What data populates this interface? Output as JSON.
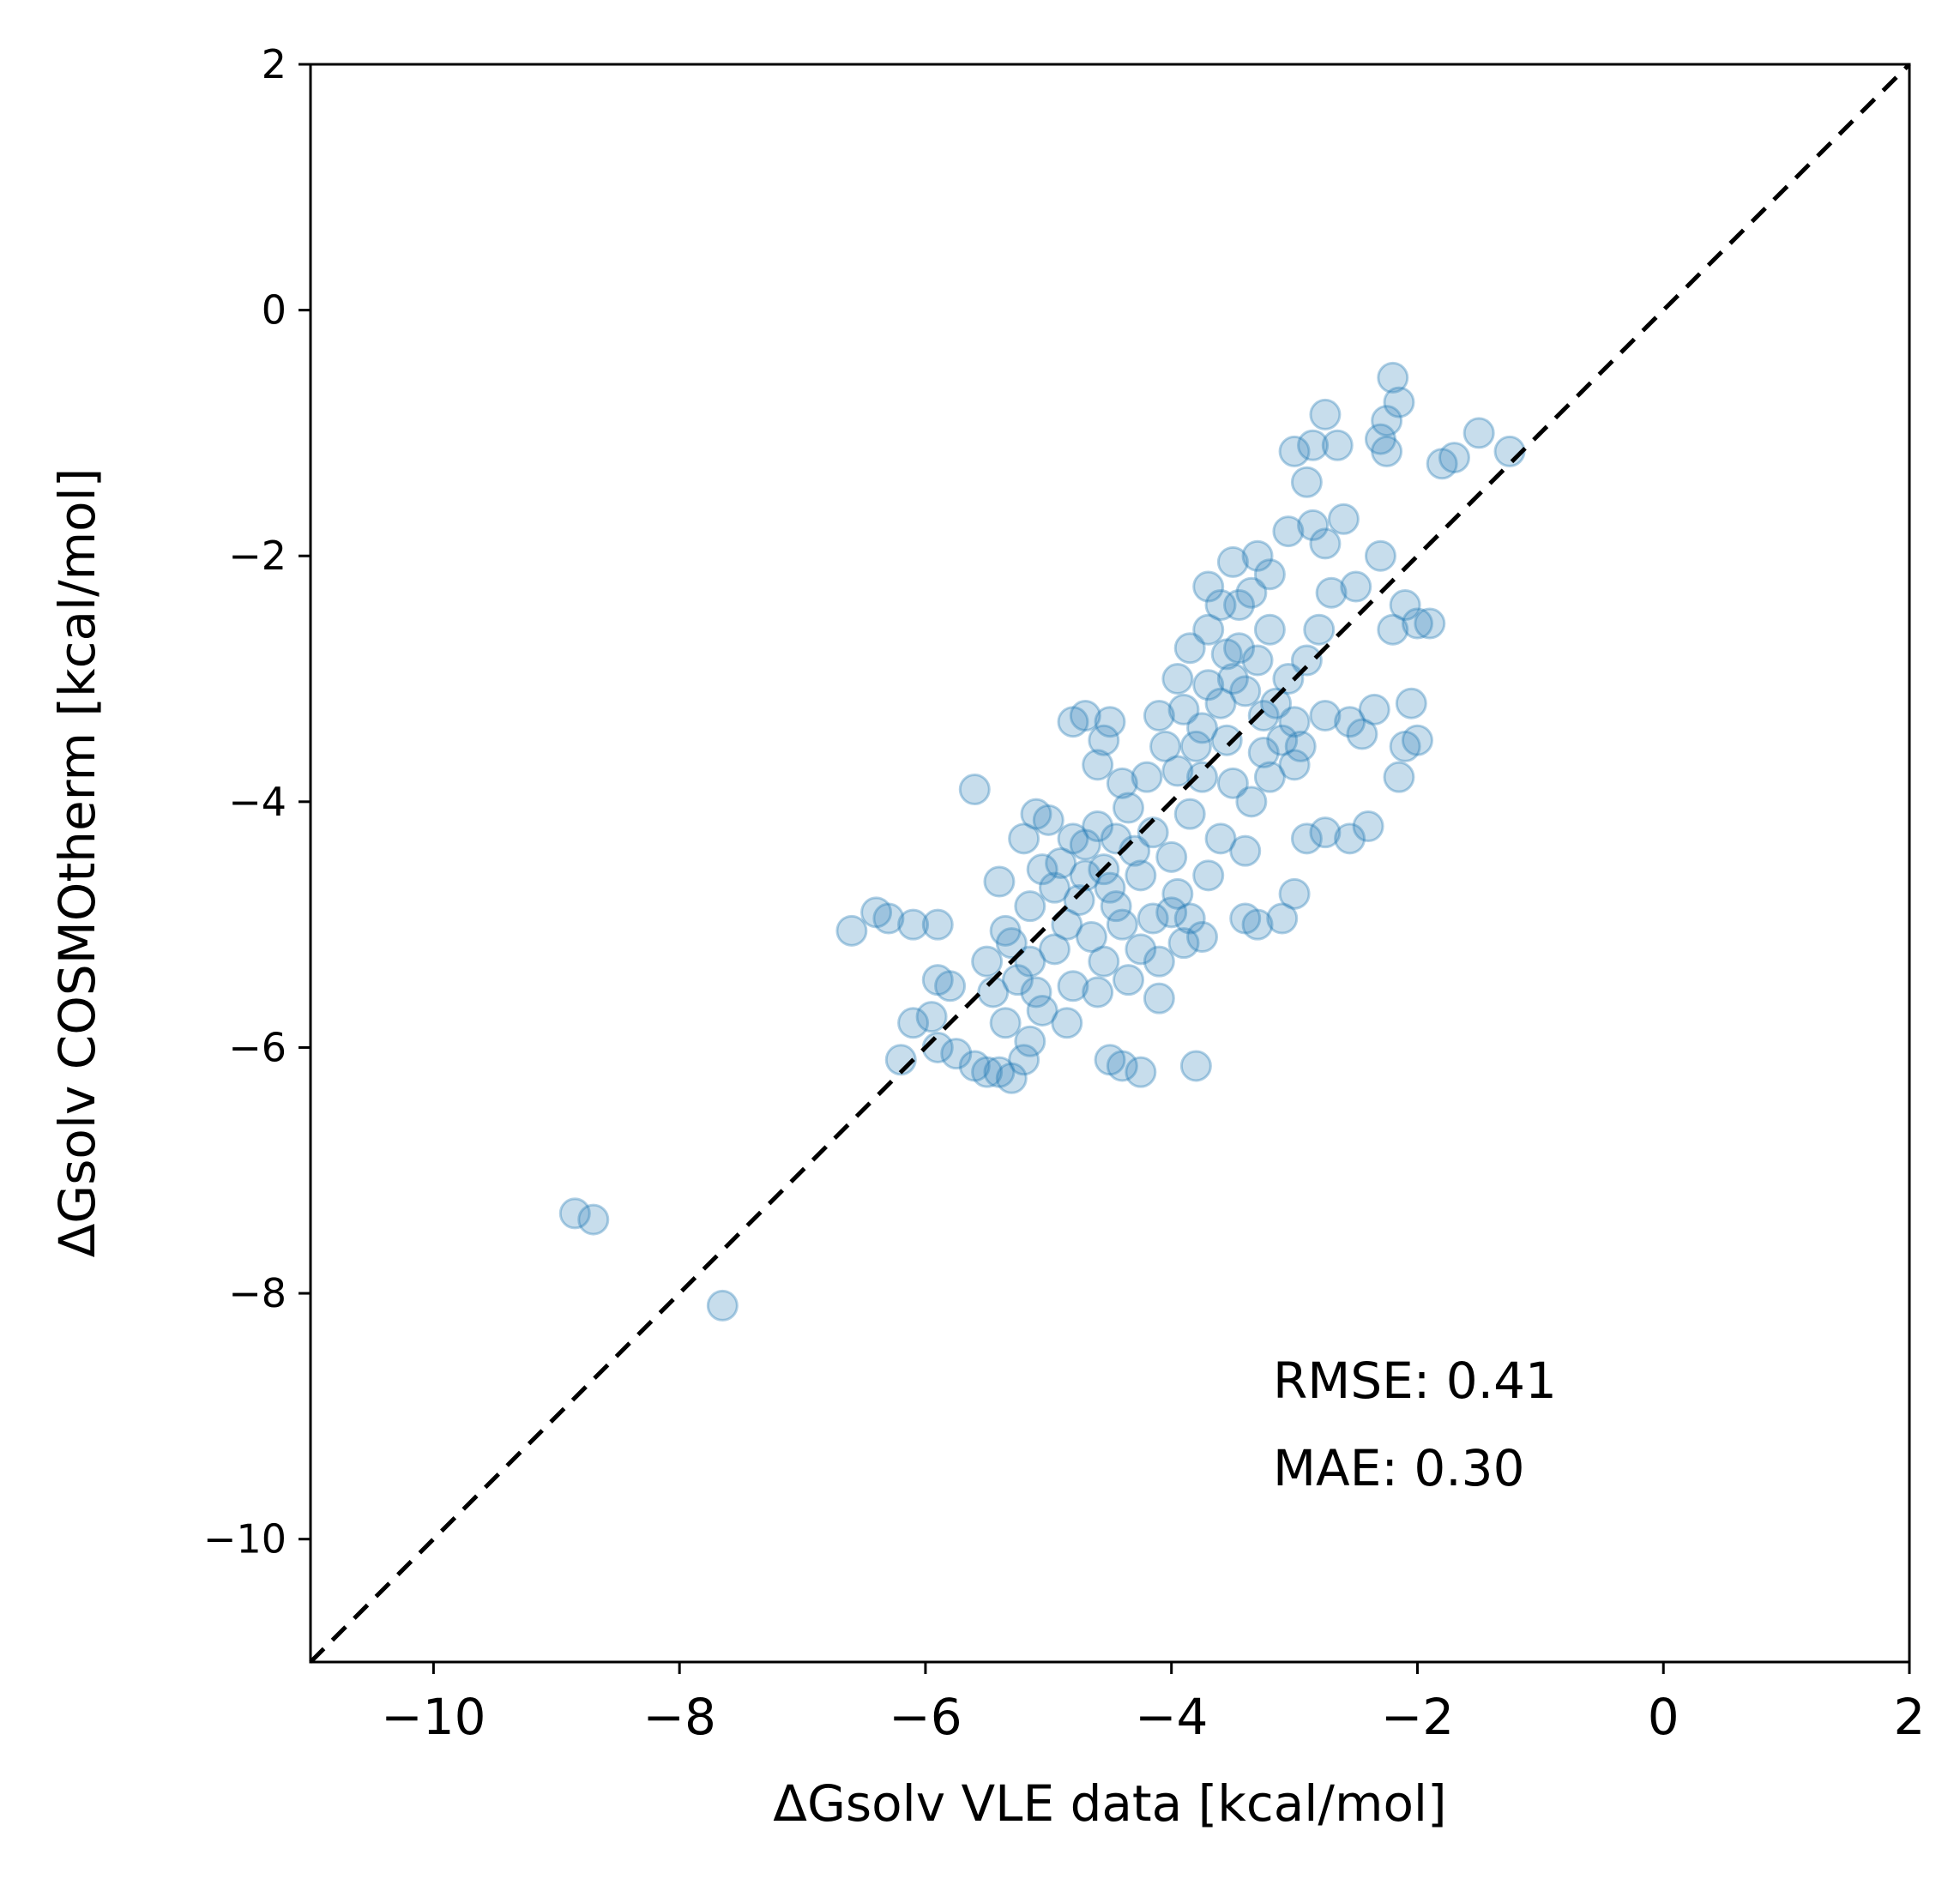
{
  "chart_data": {
    "type": "scatter",
    "xlabel": "ΔGsolv VLE data [kcal/mol]",
    "ylabel": "ΔGsolv COSMOtherm [kcal/mol]",
    "xlim": [
      -11,
      2
    ],
    "ylim": [
      -11,
      2
    ],
    "x_ticks": [
      -10,
      -8,
      -6,
      -4,
      -2,
      0,
      2
    ],
    "y_ticks": [
      -10,
      -8,
      -6,
      -4,
      -2,
      0,
      2
    ],
    "x_tick_labels": [
      "−10",
      "−8",
      "−6",
      "−4",
      "−2",
      "0",
      "2"
    ],
    "y_tick_labels": [
      "−10",
      "−8",
      "−6",
      "−4",
      "−2",
      "0",
      "2"
    ],
    "grid": false,
    "marker_color": "#1f77b4",
    "marker_alpha": 0.25,
    "reference_line": {
      "style": "dashed",
      "color": "#000000",
      "from": [
        -11,
        -11
      ],
      "to": [
        2,
        2
      ]
    },
    "annotations": [
      "RMSE: 0.41",
      "MAE: 0.30"
    ],
    "series": [
      {
        "points": [
          [
            -8.85,
            -7.35
          ],
          [
            -8.7,
            -7.4
          ],
          [
            -7.65,
            -8.1
          ],
          [
            -6.6,
            -5.05
          ],
          [
            -6.4,
            -4.9
          ],
          [
            -6.3,
            -4.95
          ],
          [
            -6.1,
            -5.0
          ],
          [
            -5.9,
            -5.0
          ],
          [
            -6.2,
            -6.1
          ],
          [
            -6.1,
            -5.8
          ],
          [
            -5.95,
            -5.75
          ],
          [
            -5.9,
            -5.45
          ],
          [
            -5.8,
            -5.5
          ],
          [
            -5.9,
            -6.0
          ],
          [
            -5.75,
            -6.05
          ],
          [
            -5.6,
            -6.15
          ],
          [
            -5.5,
            -6.2
          ],
          [
            -5.4,
            -6.2
          ],
          [
            -5.3,
            -6.25
          ],
          [
            -5.2,
            -6.1
          ],
          [
            -5.15,
            -5.95
          ],
          [
            -5.6,
            -3.9
          ],
          [
            -5.4,
            -4.65
          ],
          [
            -5.1,
            -4.1
          ],
          [
            -4.8,
            -3.35
          ],
          [
            -4.7,
            -3.3
          ],
          [
            -4.5,
            -3.35
          ],
          [
            -4.55,
            -3.5
          ],
          [
            -4.6,
            -3.7
          ],
          [
            -4.4,
            -3.85
          ],
          [
            -4.5,
            -6.1
          ],
          [
            -4.4,
            -6.15
          ],
          [
            -4.25,
            -6.2
          ],
          [
            -3.8,
            -6.15
          ],
          [
            -3.4,
            -4.95
          ],
          [
            -3.3,
            -5.0
          ],
          [
            -3.1,
            -4.95
          ],
          [
            -3.0,
            -4.75
          ],
          [
            -3.75,
            -5.1
          ],
          [
            -4.0,
            -4.9
          ],
          [
            -4.1,
            -5.6
          ],
          [
            -3.7,
            -2.25
          ],
          [
            -3.5,
            -2.05
          ],
          [
            -3.3,
            -2.0
          ],
          [
            -3.05,
            -1.8
          ],
          [
            -2.85,
            -1.75
          ],
          [
            -2.6,
            -1.7
          ],
          [
            -2.75,
            -1.9
          ],
          [
            -2.3,
            -2.0
          ],
          [
            -2.5,
            -2.25
          ],
          [
            -2.7,
            -2.3
          ],
          [
            -3.0,
            -1.15
          ],
          [
            -2.85,
            -1.1
          ],
          [
            -2.9,
            -1.4
          ],
          [
            -2.65,
            -1.1
          ],
          [
            -2.75,
            -0.85
          ],
          [
            -2.3,
            -1.05
          ],
          [
            -2.25,
            -1.15
          ],
          [
            -2.2,
            -0.55
          ],
          [
            -2.15,
            -0.75
          ],
          [
            -2.25,
            -0.9
          ],
          [
            -1.8,
            -1.25
          ],
          [
            -1.5,
            -1.0
          ],
          [
            -1.25,
            -1.15
          ],
          [
            -1.7,
            -1.2
          ],
          [
            -2.1,
            -2.4
          ],
          [
            -2.2,
            -2.6
          ],
          [
            -2.0,
            -2.55
          ],
          [
            -1.9,
            -2.55
          ],
          [
            -2.05,
            -3.2
          ],
          [
            -2.1,
            -3.55
          ],
          [
            -2.0,
            -3.5
          ],
          [
            -2.15,
            -3.8
          ],
          [
            -2.35,
            -3.25
          ],
          [
            -2.55,
            -3.35
          ],
          [
            -2.45,
            -3.45
          ],
          [
            -2.75,
            -3.3
          ],
          [
            -2.4,
            -4.2
          ],
          [
            -2.55,
            -4.3
          ],
          [
            -2.75,
            -4.25
          ],
          [
            -2.9,
            -4.3
          ],
          [
            -5.2,
            -4.3
          ],
          [
            -5.0,
            -4.15
          ],
          [
            -4.9,
            -4.5
          ],
          [
            -4.95,
            -5.2
          ],
          [
            -5.15,
            -5.3
          ],
          [
            -5.3,
            -5.15
          ],
          [
            -5.1,
            -5.55
          ],
          [
            -4.8,
            -5.5
          ],
          [
            -4.6,
            -5.55
          ],
          [
            -4.35,
            -5.45
          ],
          [
            -4.6,
            -4.2
          ],
          [
            -4.35,
            -4.05
          ],
          [
            -4.7,
            -4.35
          ],
          [
            -4.5,
            -4.7
          ],
          [
            -4.4,
            -5.0
          ],
          [
            -4.2,
            -3.8
          ],
          [
            -4.05,
            -3.55
          ],
          [
            -4.1,
            -3.3
          ],
          [
            -3.95,
            -3.0
          ],
          [
            -3.85,
            -2.75
          ],
          [
            -3.7,
            -2.6
          ],
          [
            -3.6,
            -2.4
          ],
          [
            -3.45,
            -2.4
          ],
          [
            -3.35,
            -2.3
          ],
          [
            -3.2,
            -2.15
          ],
          [
            -3.55,
            -2.8
          ],
          [
            -3.4,
            -3.1
          ],
          [
            -3.25,
            -3.3
          ],
          [
            -3.1,
            -3.5
          ],
          [
            -3.0,
            -3.7
          ],
          [
            -3.55,
            -3.5
          ],
          [
            -3.75,
            -3.8
          ],
          [
            -3.85,
            -4.1
          ],
          [
            -3.6,
            -4.3
          ],
          [
            -3.4,
            -4.4
          ],
          [
            -3.9,
            -3.25
          ],
          [
            -3.7,
            -3.05
          ],
          [
            -3.8,
            -3.55
          ],
          [
            -4.15,
            -4.25
          ],
          [
            -4.25,
            -4.6
          ],
          [
            -4.0,
            -4.45
          ],
          [
            -3.95,
            -4.75
          ],
          [
            -3.7,
            -4.6
          ],
          [
            -3.35,
            -4.0
          ],
          [
            -3.2,
            -3.8
          ],
          [
            -3.05,
            -3.0
          ],
          [
            -2.9,
            -2.85
          ],
          [
            -2.8,
            -2.6
          ],
          [
            -3.2,
            -2.6
          ],
          [
            -3.45,
            -2.75
          ],
          [
            -4.75,
            -4.8
          ],
          [
            -4.85,
            -5.0
          ],
          [
            -4.65,
            -5.1
          ],
          [
            -4.55,
            -5.3
          ],
          [
            -4.25,
            -5.2
          ],
          [
            -5.25,
            -5.45
          ],
          [
            -5.45,
            -5.55
          ],
          [
            -5.35,
            -5.8
          ],
          [
            -5.05,
            -5.7
          ],
          [
            -4.85,
            -5.8
          ],
          [
            -5.5,
            -5.3
          ],
          [
            -5.35,
            -5.05
          ],
          [
            -5.15,
            -4.85
          ],
          [
            -5.05,
            -4.55
          ],
          [
            -4.95,
            -4.7
          ],
          [
            -4.1,
            -5.3
          ],
          [
            -3.9,
            -5.15
          ],
          [
            -3.85,
            -4.95
          ],
          [
            -4.15,
            -4.95
          ],
          [
            -4.45,
            -4.85
          ],
          [
            -3.95,
            -3.75
          ],
          [
            -3.75,
            -3.4
          ],
          [
            -3.6,
            -3.2
          ],
          [
            -3.5,
            -3.0
          ],
          [
            -3.3,
            -2.85
          ],
          [
            -3.15,
            -3.2
          ],
          [
            -3.0,
            -3.35
          ],
          [
            -2.95,
            -3.55
          ],
          [
            -3.25,
            -3.6
          ],
          [
            -3.5,
            -3.85
          ],
          [
            -4.3,
            -4.4
          ],
          [
            -4.45,
            -4.3
          ],
          [
            -4.55,
            -4.55
          ],
          [
            -4.7,
            -4.6
          ],
          [
            -4.8,
            -4.3
          ]
        ]
      }
    ]
  }
}
